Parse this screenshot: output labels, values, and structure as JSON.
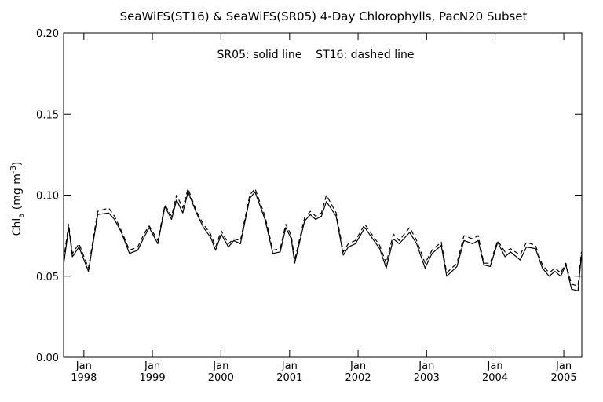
{
  "chart_data": {
    "type": "line",
    "title": "SeaWiFS(ST16) & SeaWiFS(SR05) 4-Day Chlorophylls, PacN20 Subset",
    "annotation": "SR05: solid line    ST16: dashed line",
    "ylabel": "Chl_a (mg m^-3)",
    "ylabel_parts": {
      "main": "Chl",
      "sub": "a",
      "unit": " (mg m",
      "sup": "-3",
      "close": ")"
    },
    "xlabel": "",
    "xlim": [
      "1997-09-15",
      "2005-04-07"
    ],
    "ylim": [
      0.0,
      0.2
    ],
    "yticks": [
      {
        "value": 0.0,
        "label": "0.00"
      },
      {
        "value": 0.05,
        "label": "0.05"
      },
      {
        "value": 0.1,
        "label": "0.10"
      },
      {
        "value": 0.15,
        "label": "0.15"
      },
      {
        "value": 0.2,
        "label": "0.20"
      }
    ],
    "xticks": [
      {
        "date": "1998-01-01",
        "month": "Jan",
        "year": "1998"
      },
      {
        "date": "1999-01-01",
        "month": "Jan",
        "year": "1999"
      },
      {
        "date": "2000-01-01",
        "month": "Jan",
        "year": "2000"
      },
      {
        "date": "2001-01-01",
        "month": "Jan",
        "year": "2001"
      },
      {
        "date": "2002-01-01",
        "month": "Jan",
        "year": "2002"
      },
      {
        "date": "2003-01-01",
        "month": "Jan",
        "year": "2003"
      },
      {
        "date": "2004-01-01",
        "month": "Jan",
        "year": "2004"
      },
      {
        "date": "2005-01-01",
        "month": "Jan",
        "year": "2005"
      }
    ],
    "grid": false,
    "series": [
      {
        "name": "SR05",
        "style": "solid",
        "color": "#000000",
        "x": [
          "1997-09-15",
          "1997-10-12",
          "1997-11-01",
          "1997-12-06",
          "1998-01-25",
          "1998-03-16",
          "1998-05-13",
          "1998-06-13",
          "1998-07-20",
          "1998-09-01",
          "1998-10-15",
          "1998-11-22",
          "1998-12-15",
          "1999-01-30",
          "1999-03-09",
          "1999-04-13",
          "1999-05-10",
          "1999-06-12",
          "1999-07-10",
          "1999-08-24",
          "1999-09-30",
          "1999-11-07",
          "1999-12-04",
          "2000-01-03",
          "2000-02-10",
          "2000-03-10",
          "2000-04-14",
          "2000-06-03",
          "2000-07-01",
          "2000-08-23",
          "2000-10-04",
          "2000-11-12",
          "2000-12-12",
          "2001-01-10",
          "2001-01-28",
          "2001-03-22",
          "2001-04-22",
          "2001-05-20",
          "2001-06-20",
          "2001-07-16",
          "2001-09-06",
          "2001-10-14",
          "2001-11-10",
          "2001-12-18",
          "2002-02-06",
          "2002-03-20",
          "2002-04-26",
          "2002-05-31",
          "2002-07-08",
          "2002-08-08",
          "2002-10-03",
          "2002-11-09",
          "2002-12-24",
          "2003-01-30",
          "2003-03-20",
          "2003-04-18",
          "2003-06-12",
          "2003-07-19",
          "2003-09-04",
          "2003-10-03",
          "2003-11-02",
          "2003-12-06",
          "2004-01-15",
          "2004-02-23",
          "2004-03-23",
          "2004-05-13",
          "2004-06-16",
          "2004-08-03",
          "2004-09-09",
          "2004-10-15",
          "2004-11-15",
          "2004-12-16",
          "2005-01-12",
          "2005-02-11",
          "2005-03-18",
          "2005-04-05"
        ],
        "values": [
          0.057,
          0.08,
          0.062,
          0.068,
          0.053,
          0.088,
          0.089,
          0.085,
          0.077,
          0.064,
          0.066,
          0.075,
          0.08,
          0.07,
          0.093,
          0.085,
          0.097,
          0.089,
          0.102,
          0.089,
          0.08,
          0.074,
          0.066,
          0.076,
          0.068,
          0.072,
          0.07,
          0.098,
          0.102,
          0.085,
          0.064,
          0.065,
          0.08,
          0.073,
          0.058,
          0.084,
          0.088,
          0.085,
          0.087,
          0.096,
          0.087,
          0.063,
          0.068,
          0.07,
          0.08,
          0.073,
          0.067,
          0.055,
          0.073,
          0.07,
          0.077,
          0.07,
          0.055,
          0.064,
          0.069,
          0.05,
          0.056,
          0.072,
          0.07,
          0.072,
          0.057,
          0.056,
          0.071,
          0.062,
          0.065,
          0.06,
          0.068,
          0.067,
          0.055,
          0.05,
          0.053,
          0.05,
          0.057,
          0.042,
          0.041,
          0.063
        ]
      },
      {
        "name": "ST16",
        "style": "dashed",
        "color": "#000000",
        "x": [
          "1997-09-15",
          "1997-10-12",
          "1997-11-01",
          "1997-12-06",
          "1998-01-25",
          "1998-03-16",
          "1998-05-13",
          "1998-06-13",
          "1998-07-20",
          "1998-09-01",
          "1998-10-15",
          "1998-11-22",
          "1998-12-15",
          "1999-01-30",
          "1999-03-09",
          "1999-04-13",
          "1999-05-10",
          "1999-06-12",
          "1999-07-10",
          "1999-08-24",
          "1999-09-30",
          "1999-11-07",
          "1999-12-04",
          "2000-01-03",
          "2000-02-10",
          "2000-03-10",
          "2000-04-14",
          "2000-06-03",
          "2000-07-01",
          "2000-08-23",
          "2000-10-04",
          "2000-11-12",
          "2000-12-12",
          "2001-01-10",
          "2001-01-28",
          "2001-03-22",
          "2001-04-22",
          "2001-05-20",
          "2001-06-20",
          "2001-07-16",
          "2001-09-06",
          "2001-10-14",
          "2001-11-10",
          "2001-12-18",
          "2002-02-06",
          "2002-03-20",
          "2002-04-26",
          "2002-05-31",
          "2002-07-08",
          "2002-08-08",
          "2002-10-03",
          "2002-11-09",
          "2002-12-24",
          "2003-01-30",
          "2003-03-20",
          "2003-04-18",
          "2003-06-12",
          "2003-07-19",
          "2003-09-04",
          "2003-10-03",
          "2003-11-02",
          "2003-12-06",
          "2004-01-15",
          "2004-02-23",
          "2004-03-23",
          "2004-05-13",
          "2004-06-16",
          "2004-08-03",
          "2004-09-09",
          "2004-10-15",
          "2004-11-15",
          "2004-12-16",
          "2005-01-12",
          "2005-02-11",
          "2005-03-18",
          "2005-04-05"
        ],
        "values": [
          0.06,
          0.082,
          0.064,
          0.07,
          0.055,
          0.09,
          0.092,
          0.087,
          0.078,
          0.066,
          0.068,
          0.077,
          0.081,
          0.072,
          0.094,
          0.087,
          0.1,
          0.092,
          0.104,
          0.09,
          0.082,
          0.076,
          0.068,
          0.078,
          0.07,
          0.073,
          0.072,
          0.1,
          0.104,
          0.087,
          0.066,
          0.067,
          0.082,
          0.075,
          0.06,
          0.086,
          0.09,
          0.087,
          0.089,
          0.1,
          0.089,
          0.065,
          0.07,
          0.072,
          0.082,
          0.075,
          0.069,
          0.058,
          0.076,
          0.072,
          0.08,
          0.072,
          0.058,
          0.066,
          0.071,
          0.052,
          0.058,
          0.075,
          0.073,
          0.075,
          0.058,
          0.058,
          0.072,
          0.065,
          0.067,
          0.063,
          0.071,
          0.069,
          0.057,
          0.052,
          0.055,
          0.052,
          0.058,
          0.045,
          0.044,
          0.065
        ]
      }
    ]
  }
}
